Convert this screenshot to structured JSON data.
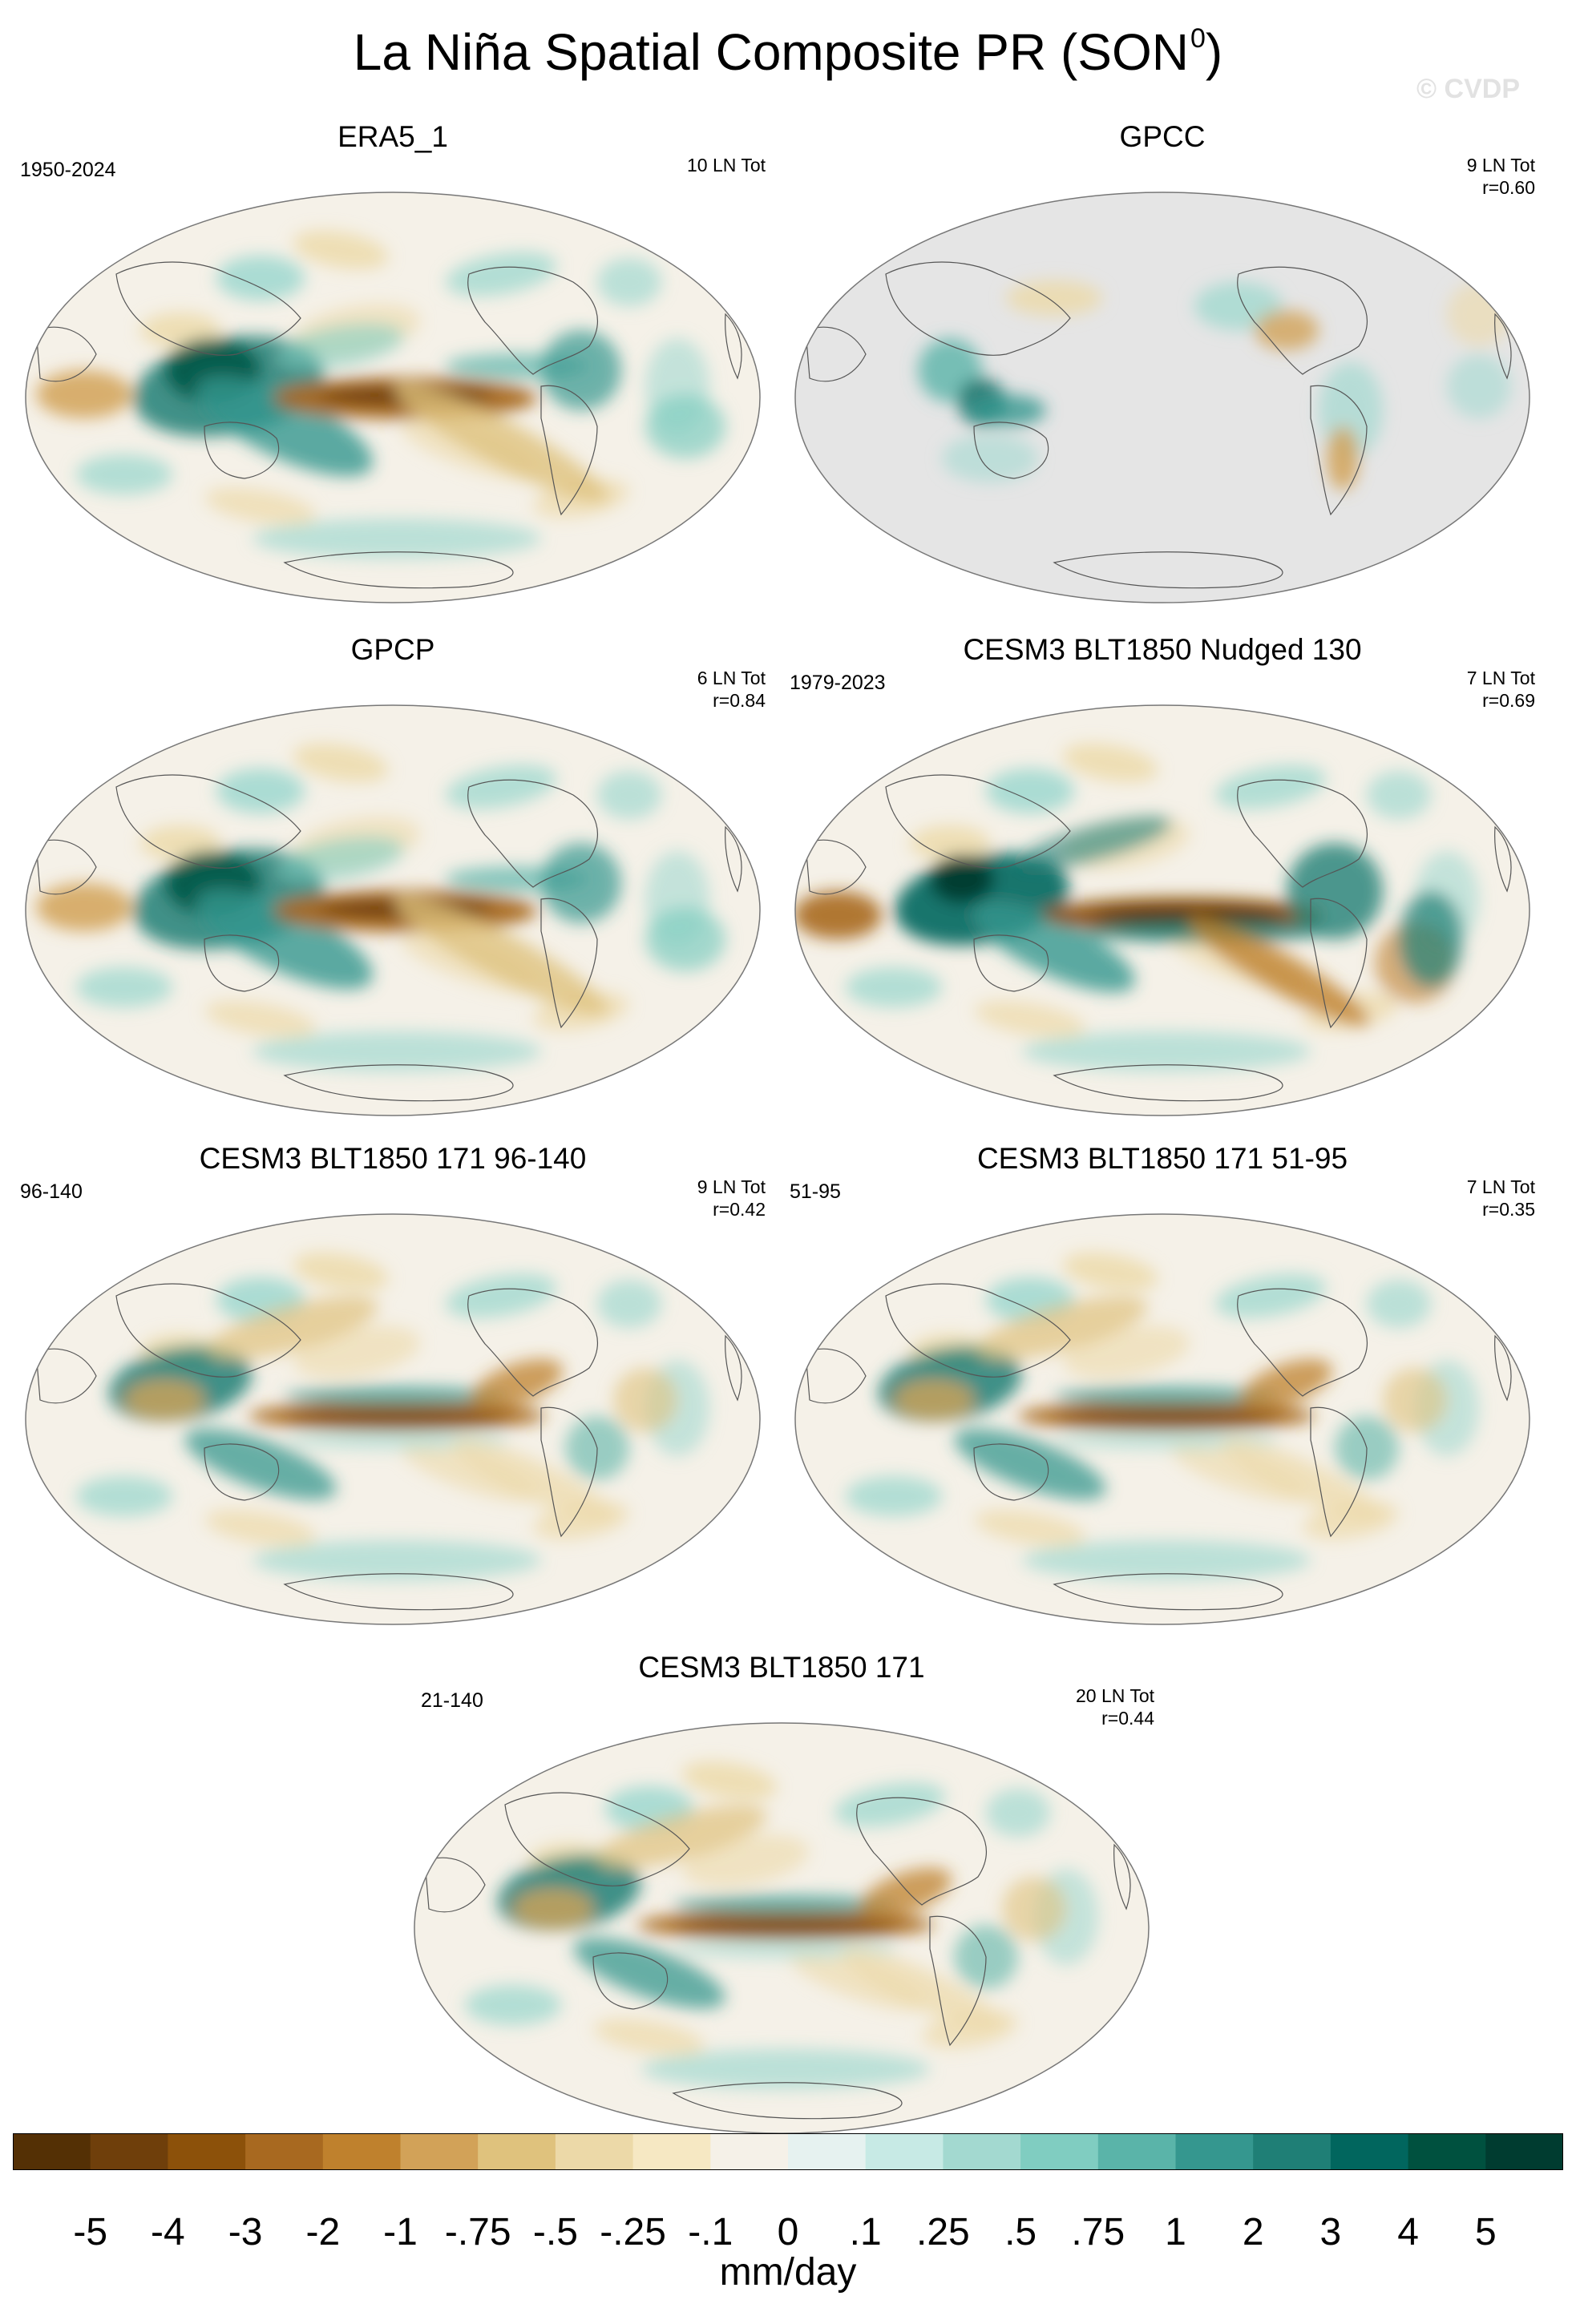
{
  "title": "La Niña Spatial Composite PR (SON",
  "title_sup": "0",
  "title_close": ")",
  "watermark": "© CVDP",
  "panels": [
    {
      "title": "ERA5_1",
      "left": "1950-2024",
      "right_lines": [
        "10 LN Tot"
      ],
      "style": "full"
    },
    {
      "title": "GPCC",
      "left": "",
      "right_lines": [
        "9 LN Tot",
        "r=0.60"
      ],
      "style": "land"
    },
    {
      "title": "GPCP",
      "left": "",
      "right_lines": [
        "6 LN Tot",
        "r=0.84"
      ],
      "style": "full"
    },
    {
      "title": "CESM3 BLT1850 Nudged 130",
      "left": "1979-2023",
      "right_lines": [
        "7 LN Tot",
        "r=0.69"
      ],
      "style": "strong"
    },
    {
      "title": "CESM3 BLT1850 171 96-140",
      "left": "96-140",
      "right_lines": [
        "9 LN Tot",
        "r=0.42"
      ],
      "style": "model"
    },
    {
      "title": "CESM3 BLT1850 171 51-95",
      "left": "51-95",
      "right_lines": [
        "7 LN Tot",
        "r=0.35"
      ],
      "style": "model"
    },
    {
      "title": "CESM3 BLT1850 171",
      "left": "21-140",
      "right_lines": [
        "20 LN Tot",
        "r=0.44"
      ],
      "style": "model"
    }
  ],
  "colorbar": {
    "colors": [
      "#543005",
      "#6f3f0b",
      "#8c510a",
      "#a86920",
      "#bf812d",
      "#d2a258",
      "#dfc27d",
      "#ecd9a8",
      "#f6e8c3",
      "#f5f1e8",
      "#e6f2f0",
      "#c7eae5",
      "#a3d9d0",
      "#80cdc1",
      "#5ab4a9",
      "#35978f",
      "#1f7f76",
      "#01665e",
      "#00513f",
      "#003c30"
    ],
    "labels": [
      "-5",
      "-4",
      "-3",
      "-2",
      "-1",
      "-.75",
      "-.5",
      "-.25",
      "-.1",
      "0",
      ".1",
      ".25",
      ".5",
      ".75",
      "1",
      "2",
      "3",
      "4",
      "5"
    ],
    "unit": "mm/day"
  },
  "map_colors": {
    "ocean_base": "#f5f1e8",
    "masked": "#e5e5e5",
    "coast": "#555555"
  }
}
